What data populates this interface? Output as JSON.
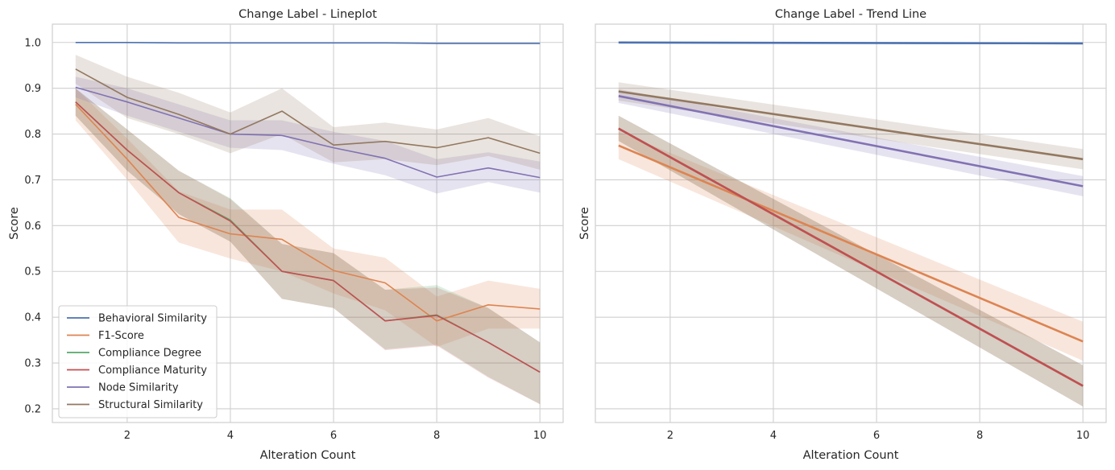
{
  "chart_data": [
    {
      "type": "line",
      "title": "Change Label - Lineplot",
      "xlabel": "Alteration Count",
      "ylabel": "Score",
      "xlim": [
        0.55,
        10.45
      ],
      "ylim": [
        0.17,
        1.04
      ],
      "xticks": [
        2,
        4,
        6,
        8,
        10
      ],
      "yticks": [
        0.2,
        0.3,
        0.4,
        0.5,
        0.6,
        0.7,
        0.8,
        0.9,
        1.0
      ],
      "grid": true,
      "legend_location": "lower-left",
      "x": [
        1,
        2,
        3,
        4,
        5,
        6,
        7,
        8,
        9,
        10
      ],
      "series": [
        {
          "name": "Behavioral Similarity",
          "color": "#4c72b0",
          "values": [
            1.0,
            1.0,
            0.999,
            0.999,
            0.999,
            0.999,
            0.999,
            0.998,
            0.998,
            0.998
          ],
          "lower": [
            0.999,
            0.999,
            0.998,
            0.998,
            0.998,
            0.998,
            0.998,
            0.997,
            0.997,
            0.997
          ],
          "upper": [
            1.0,
            1.0,
            1.0,
            1.0,
            1.0,
            1.0,
            1.0,
            0.999,
            0.999,
            0.999
          ]
        },
        {
          "name": "F1-Score",
          "color": "#dd8452",
          "values": [
            0.865,
            0.745,
            0.618,
            0.582,
            0.57,
            0.502,
            0.475,
            0.392,
            0.427,
            0.418
          ],
          "lower": [
            0.83,
            0.7,
            0.563,
            0.528,
            0.5,
            0.452,
            0.415,
            0.335,
            0.375,
            0.375
          ],
          "upper": [
            0.9,
            0.79,
            0.675,
            0.635,
            0.635,
            0.55,
            0.53,
            0.445,
            0.48,
            0.462
          ]
        },
        {
          "name": "Compliance Degree",
          "color": "#55a868",
          "values": [
            0.87,
            0.765,
            0.672,
            0.612,
            0.5,
            0.48,
            0.392,
            0.405,
            0.345,
            0.28
          ],
          "lower": [
            0.84,
            0.72,
            0.625,
            0.565,
            0.44,
            0.42,
            0.33,
            0.34,
            0.27,
            0.21
          ],
          "upper": [
            0.9,
            0.81,
            0.72,
            0.66,
            0.56,
            0.54,
            0.46,
            0.47,
            0.42,
            0.345
          ]
        },
        {
          "name": "Compliance Maturity",
          "color": "#c44e52",
          "values": [
            0.87,
            0.765,
            0.672,
            0.61,
            0.5,
            0.48,
            0.392,
            0.404,
            0.345,
            0.28
          ],
          "lower": [
            0.84,
            0.72,
            0.625,
            0.565,
            0.44,
            0.42,
            0.328,
            0.338,
            0.268,
            0.21
          ],
          "upper": [
            0.9,
            0.81,
            0.72,
            0.658,
            0.56,
            0.54,
            0.46,
            0.465,
            0.42,
            0.345
          ]
        },
        {
          "name": "Node Similarity",
          "color": "#8172b3",
          "values": [
            0.902,
            0.87,
            0.835,
            0.8,
            0.797,
            0.77,
            0.747,
            0.706,
            0.726,
            0.705
          ],
          "lower": [
            0.88,
            0.84,
            0.805,
            0.77,
            0.765,
            0.735,
            0.71,
            0.67,
            0.695,
            0.672
          ],
          "upper": [
            0.925,
            0.9,
            0.865,
            0.83,
            0.83,
            0.805,
            0.785,
            0.745,
            0.76,
            0.74
          ]
        },
        {
          "name": "Structural Similarity",
          "color": "#937860",
          "values": [
            0.942,
            0.88,
            0.843,
            0.8,
            0.85,
            0.776,
            0.784,
            0.77,
            0.792,
            0.758
          ],
          "lower": [
            0.91,
            0.835,
            0.8,
            0.758,
            0.8,
            0.738,
            0.745,
            0.732,
            0.752,
            0.722
          ],
          "upper": [
            0.973,
            0.925,
            0.89,
            0.847,
            0.9,
            0.815,
            0.825,
            0.81,
            0.835,
            0.795
          ]
        }
      ]
    },
    {
      "type": "line",
      "title": "Change Label - Trend Line",
      "xlabel": "Alteration Count",
      "ylabel": "Score",
      "xlim": [
        0.55,
        10.45
      ],
      "ylim": [
        0.17,
        1.04
      ],
      "xticks": [
        2,
        4,
        6,
        8,
        10
      ],
      "yticks": [
        0.2,
        0.3,
        0.4,
        0.5,
        0.6,
        0.7,
        0.8,
        0.9,
        1.0
      ],
      "grid": true,
      "x": [
        1,
        10
      ],
      "series": [
        {
          "name": "Behavioral Similarity",
          "color": "#4c72b0",
          "values": [
            1.0,
            0.998
          ],
          "lower": [
            0.999,
            0.997
          ],
          "upper": [
            1.001,
            0.999
          ]
        },
        {
          "name": "F1-Score",
          "color": "#dd8452",
          "values": [
            0.775,
            0.347
          ],
          "lower": [
            0.745,
            0.305
          ],
          "upper": [
            0.805,
            0.39
          ]
        },
        {
          "name": "Compliance Degree",
          "color": "#55a868",
          "values": [
            0.812,
            0.25
          ],
          "lower": [
            0.785,
            0.205
          ],
          "upper": [
            0.84,
            0.295
          ]
        },
        {
          "name": "Compliance Maturity",
          "color": "#c44e52",
          "values": [
            0.812,
            0.25
          ],
          "lower": [
            0.785,
            0.205
          ],
          "upper": [
            0.84,
            0.295
          ]
        },
        {
          "name": "Node Similarity",
          "color": "#8172b3",
          "values": [
            0.883,
            0.686
          ],
          "lower": [
            0.868,
            0.664
          ],
          "upper": [
            0.898,
            0.708
          ]
        },
        {
          "name": "Structural Similarity",
          "color": "#937860",
          "values": [
            0.893,
            0.745
          ],
          "lower": [
            0.873,
            0.723
          ],
          "upper": [
            0.913,
            0.767
          ]
        }
      ]
    }
  ]
}
